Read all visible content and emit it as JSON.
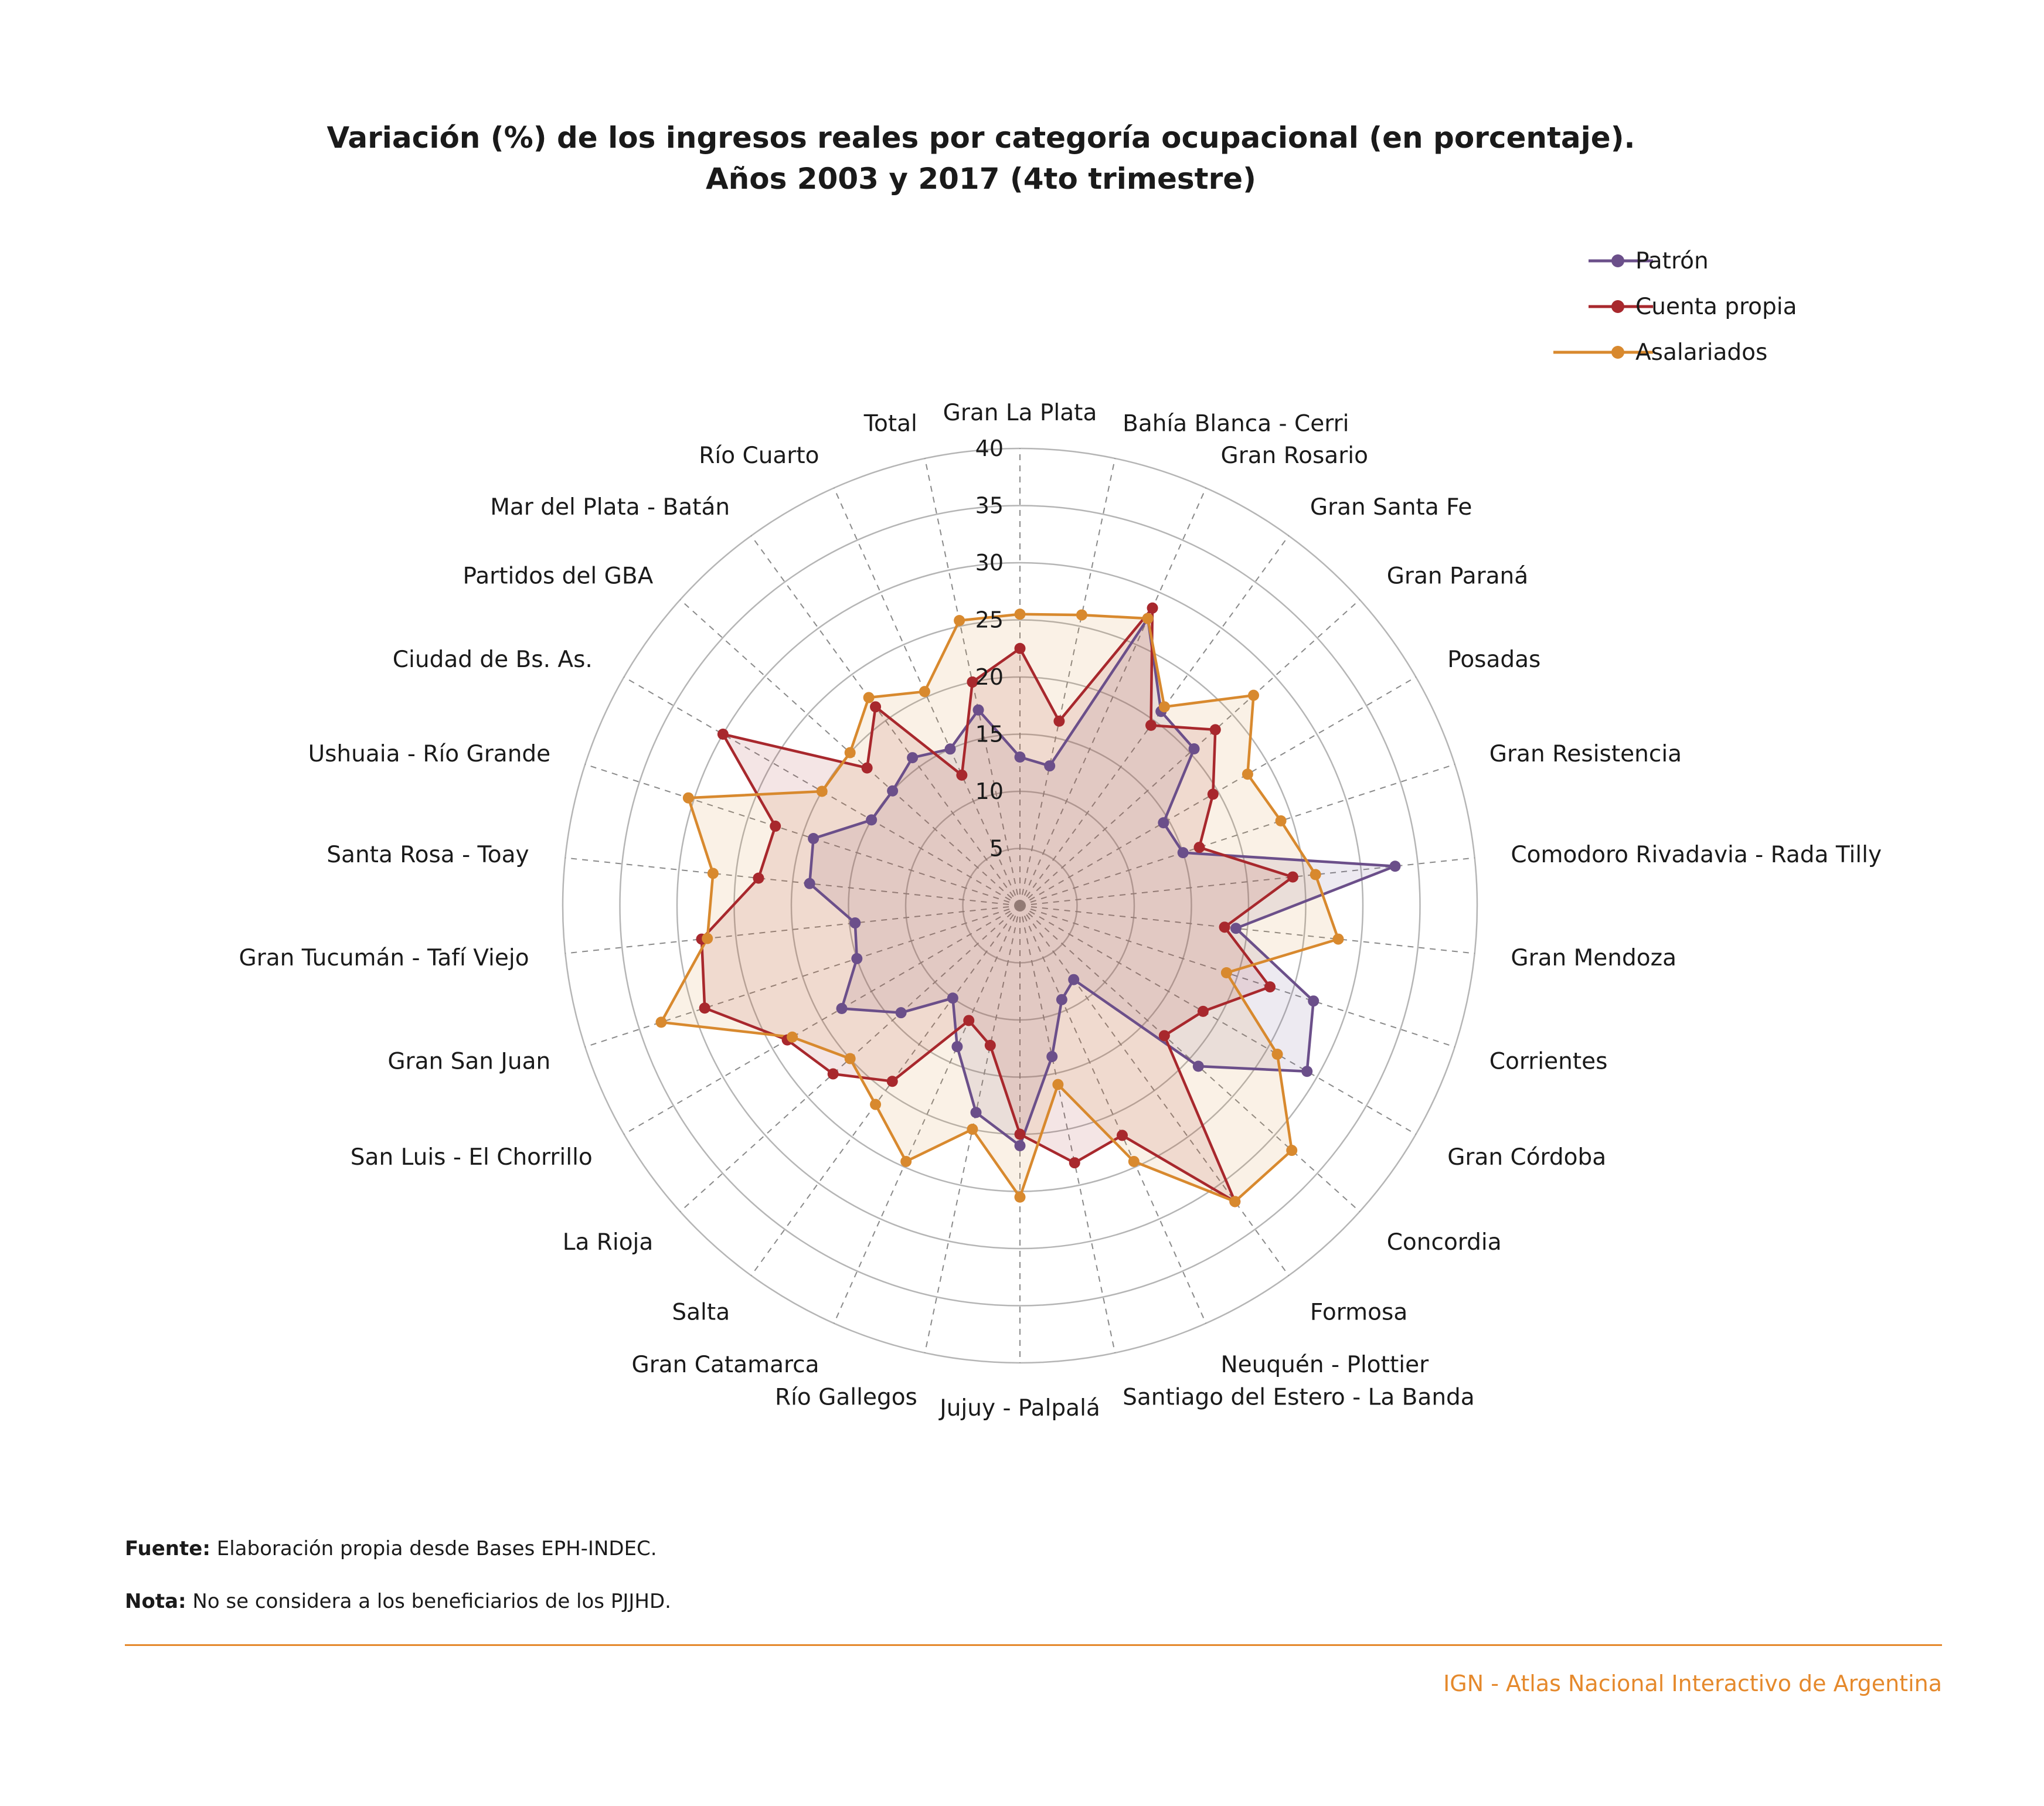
{
  "title_line1": "Variación (%) de los ingresos reales por categoría ocupacional (en porcentaje).",
  "title_line2": "Años 2003 y 2017 (4to trimestre)",
  "footnotes": {
    "source_label": "Fuente:",
    "source_text": " Elaboración propia desde Bases EPH-INDEC.",
    "note_label": "Nota:",
    "note_text": " No se considera a los beneficiarios de los PJJHD."
  },
  "credit": "IGN - Atlas Nacional Interactivo de Argentina",
  "colors": {
    "patron": "#6b4f8a",
    "cuenta_propia": "#a8282d",
    "asalariados": "#d8892e",
    "accent": "#e5892c",
    "grid": "#b5b5b5"
  },
  "chart_data": {
    "type": "radar",
    "r_ticks": [
      5,
      10,
      15,
      20,
      25,
      30,
      35,
      40
    ],
    "r_range": [
      0,
      40
    ],
    "categories": [
      "Gran La Plata",
      "Bahía Blanca - Cerri",
      "Gran Rosario",
      "Gran  Santa Fe",
      "Gran  Paraná",
      "Posadas",
      "Gran Resistencia",
      "Comodoro Rivadavia - Rada Tilly",
      "Gran Mendoza",
      "Corrientes",
      "Gran Córdoba",
      "Concordia",
      "Formosa",
      "Neuquén - Plottier",
      "Santiago del Estero - La Banda",
      "Jujuy - Palpalá",
      "Río Gallegos",
      "Gran Catamarca",
      "Salta",
      "La Rioja",
      "San Luis - El Chorrillo",
      "Gran  San Juan",
      "Gran Tucumán - Tafí Viejo",
      "Santa Rosa - Toay",
      "Ushuaia - Río Grande",
      "Ciudad de Bs. As.",
      "Partidos del GBA",
      "Mar del Plata - Batán",
      "Río Cuarto",
      "Total"
    ],
    "series": [
      {
        "name": "Patrón",
        "color_key": "patron",
        "values": [
          13,
          12.5,
          27.5,
          21,
          20.5,
          14.5,
          15,
          33,
          19,
          27,
          29,
          21,
          8,
          9,
          13.5,
          21,
          18.5,
          13.5,
          10,
          14,
          18,
          15,
          14.5,
          18.5,
          19,
          15,
          15,
          16,
          15,
          17.5
        ]
      },
      {
        "name": "Cuenta propia",
        "color_key": "cuenta_propia",
        "values": [
          22.5,
          16.5,
          28.5,
          19.5,
          23,
          19.5,
          16.5,
          24,
          18,
          23,
          18.5,
          17,
          32,
          22,
          23,
          20,
          12.5,
          11,
          19,
          22,
          23.5,
          29,
          28,
          23,
          22.5,
          30,
          18,
          21.5,
          12.5,
          20
        ]
      },
      {
        "name": "Asalariados",
        "color_key": "asalariados",
        "values": [
          25.5,
          26,
          27.5,
          21.5,
          27.5,
          23,
          24,
          26,
          28,
          19,
          26,
          32,
          32,
          24.5,
          16,
          25.5,
          20,
          24.5,
          21.5,
          20,
          23,
          33,
          27.5,
          27,
          30.5,
          20,
          20,
          22.5,
          20.5,
          25.5
        ]
      }
    ],
    "legend_position": "top-right",
    "grid": true
  }
}
